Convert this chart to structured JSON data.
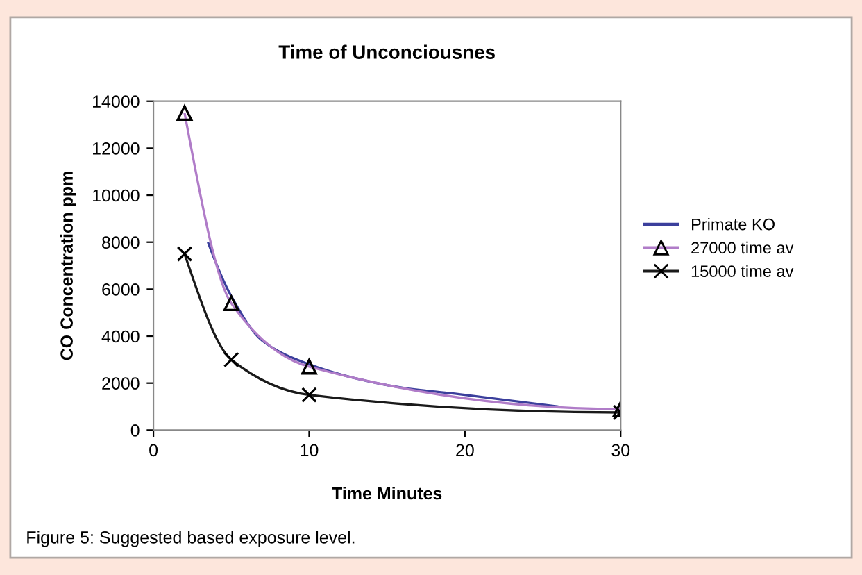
{
  "chart_data": {
    "type": "line",
    "title": "Time of Unconciousnes",
    "xlabel": "Time Minutes",
    "ylabel": "CO Concentration ppm",
    "xlim": [
      0,
      30
    ],
    "xticks": [
      0,
      10,
      20,
      30
    ],
    "ylim": [
      0,
      14000
    ],
    "yticks": [
      0,
      2000,
      4000,
      6000,
      8000,
      10000,
      12000,
      14000
    ],
    "grid": false,
    "legend": "right",
    "series": [
      {
        "name": "Primate KO",
        "color": "#3b3f9c",
        "marker": "none",
        "x": [
          3.5,
          5,
          7,
          10,
          13,
          16,
          20,
          26
        ],
        "values": [
          8000,
          5700,
          3800,
          2800,
          2200,
          1800,
          1500,
          1000
        ]
      },
      {
        "name": "27000 time av",
        "color": "#b07cc8",
        "marker": "triangle",
        "x": [
          2,
          5,
          10,
          30
        ],
        "values": [
          13500,
          5400,
          2700,
          900
        ]
      },
      {
        "name": "15000 time av",
        "color": "#1a1a1a",
        "marker": "cross",
        "x": [
          2,
          5,
          10,
          30
        ],
        "values": [
          7500,
          3000,
          1500,
          750
        ]
      }
    ],
    "annotations": [
      "Figure 5: Suggested based exposure level."
    ]
  }
}
